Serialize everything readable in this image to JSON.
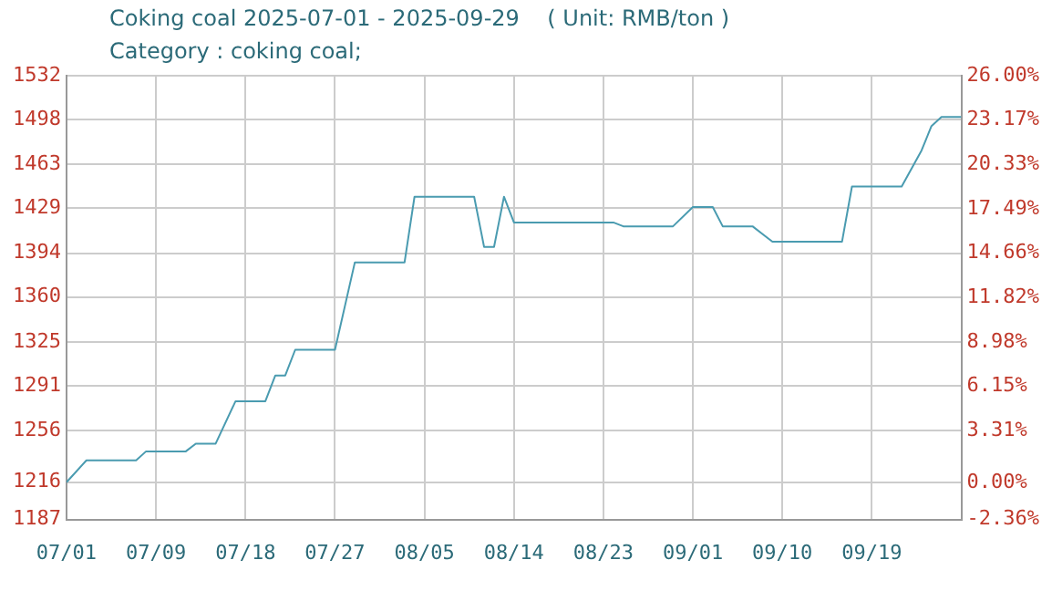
{
  "chart_data": {
    "type": "line",
    "title": "Coking coal 2025-07-01 - 2025-09-29    ( Unit: RMB/ton )",
    "subtitle": "Category : coking coal;",
    "x": [
      "2025-07-01",
      "2025-07-03",
      "2025-07-08",
      "2025-07-09",
      "2025-07-13",
      "2025-07-14",
      "2025-07-16",
      "2025-07-18",
      "2025-07-21",
      "2025-07-22",
      "2025-07-23",
      "2025-07-24",
      "2025-07-28",
      "2025-07-30",
      "2025-08-04",
      "2025-08-05",
      "2025-08-11",
      "2025-08-12",
      "2025-08-13",
      "2025-08-14",
      "2025-08-15",
      "2025-08-25",
      "2025-08-26",
      "2025-08-31",
      "2025-09-02",
      "2025-09-04",
      "2025-09-05",
      "2025-09-08",
      "2025-09-10",
      "2025-09-17",
      "2025-09-18",
      "2025-09-23",
      "2025-09-25",
      "2025-09-26",
      "2025-09-27",
      "2025-09-29"
    ],
    "series": [
      {
        "color": "#4a9bb0",
        "values": [
          1216,
          1233,
          1233,
          1240,
          1240,
          1246,
          1246,
          1279,
          1279,
          1299,
          1299,
          1319,
          1319,
          1387,
          1387,
          1438,
          1438,
          1399,
          1399,
          1438,
          1418,
          1418,
          1415,
          1415,
          1430,
          1430,
          1415,
          1415,
          1403,
          1403,
          1446,
          1446,
          1474,
          1493,
          1500,
          1500
        ]
      }
    ],
    "xlim": [
      "2025-07-01",
      "2025-09-29"
    ],
    "xticks": [
      {
        "value": "2025-07-01",
        "label": "07/01"
      },
      {
        "value": "2025-07-10",
        "label": "07/09"
      },
      {
        "value": "2025-07-19",
        "label": "07/18"
      },
      {
        "value": "2025-07-28",
        "label": "07/27"
      },
      {
        "value": "2025-08-06",
        "label": "08/05"
      },
      {
        "value": "2025-08-15",
        "label": "08/14"
      },
      {
        "value": "2025-08-24",
        "label": "08/23"
      },
      {
        "value": "2025-09-02",
        "label": "09/01"
      },
      {
        "value": "2025-09-11",
        "label": "09/10"
      },
      {
        "value": "2025-09-20",
        "label": "09/19"
      }
    ],
    "ylim": [
      1187,
      1532
    ],
    "yticks": [
      1187,
      1216,
      1256,
      1291,
      1325,
      1360,
      1394,
      1429,
      1463,
      1498,
      1532
    ],
    "y2lim": [
      -2.36,
      26
    ],
    "y2ticks": [
      {
        "value": -2.36,
        "label": "-2.36%"
      },
      {
        "value": 0,
        "label": "0.00%"
      },
      {
        "value": 3.31,
        "label": "3.31%"
      },
      {
        "value": 6.15,
        "label": "6.15%"
      },
      {
        "value": 8.98,
        "label": "8.98%"
      },
      {
        "value": 11.82,
        "label": "11.82%"
      },
      {
        "value": 14.66,
        "label": "14.66%"
      },
      {
        "value": 17.49,
        "label": "17.49%"
      },
      {
        "value": 20.33,
        "label": "20.33%"
      },
      {
        "value": 23.17,
        "label": "23.17%"
      },
      {
        "value": 26,
        "label": "26.00%"
      }
    ],
    "grid": true,
    "legend": false,
    "marker": "none",
    "line_style": "solid"
  }
}
